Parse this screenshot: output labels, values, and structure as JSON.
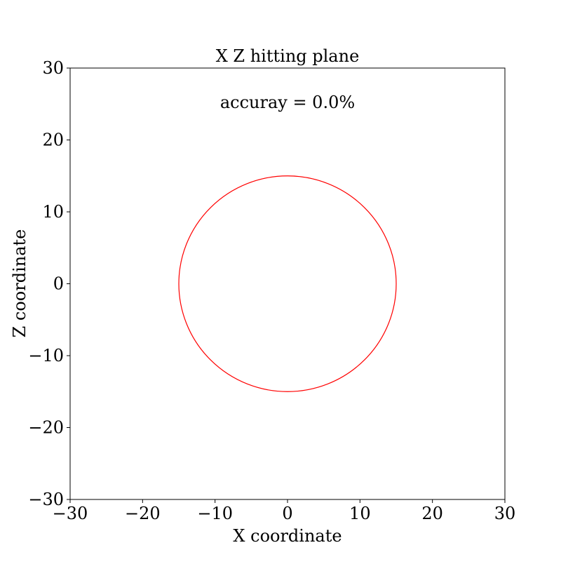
{
  "chart_data": {
    "type": "scatter",
    "title": "X Z hitting plane",
    "xlabel": "X coordinate",
    "ylabel": "Z coordinate",
    "xlim": [
      -30,
      30
    ],
    "ylim": [
      -30,
      30
    ],
    "xticks": [
      -30,
      -20,
      -10,
      0,
      10,
      20,
      30
    ],
    "yticks": [
      -30,
      -20,
      -10,
      0,
      10,
      20,
      30
    ],
    "xtick_labels": [
      "−30",
      "−20",
      "−10",
      "0",
      "10",
      "20",
      "30"
    ],
    "ytick_labels": [
      "−30",
      "−20",
      "−10",
      "0",
      "10",
      "20",
      "30"
    ],
    "grid": false,
    "annotation": "accuray = 0.0%",
    "circle": {
      "center": [
        0,
        0
      ],
      "radius": 15,
      "color": "#ff0000"
    },
    "points": []
  }
}
